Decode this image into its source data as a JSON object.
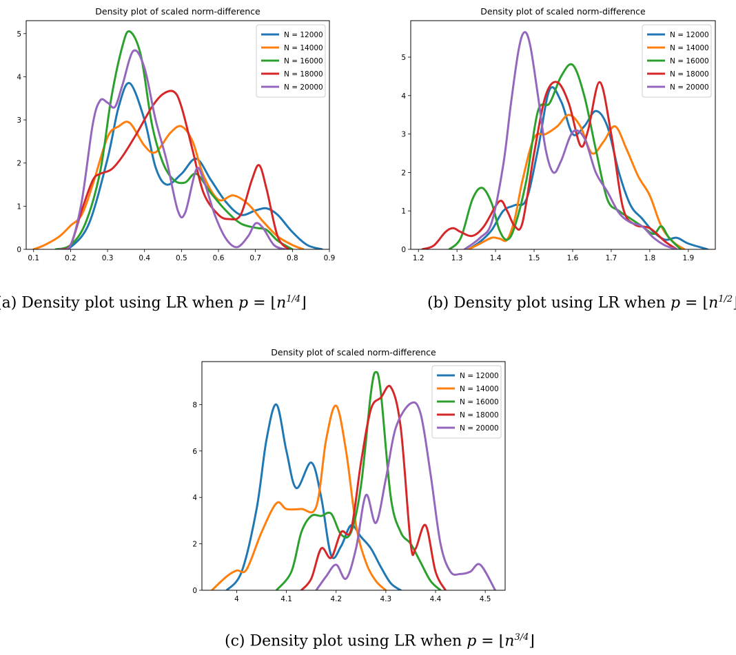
{
  "chart_data": [
    {
      "type": "line",
      "title": "Density plot of scaled norm-difference",
      "xlabel": "",
      "ylabel": "",
      "xlim": [
        0.08,
        0.9
      ],
      "ylim": [
        0,
        5.3
      ],
      "xticks": [
        0.1,
        0.2,
        0.3,
        0.4,
        0.5,
        0.6,
        0.7,
        0.8,
        0.9
      ],
      "yticks": [
        0,
        1,
        2,
        3,
        4,
        5
      ],
      "legend": "top-right",
      "grid": false,
      "series": [
        {
          "name": "N = 12000",
          "color": "#1f77b4",
          "x": [
            0.17,
            0.2,
            0.25,
            0.3,
            0.33,
            0.36,
            0.4,
            0.43,
            0.46,
            0.5,
            0.54,
            0.58,
            0.62,
            0.66,
            0.7,
            0.73,
            0.76,
            0.8,
            0.84,
            0.88
          ],
          "y": [
            0,
            0.05,
            0.6,
            2.1,
            3.3,
            3.85,
            3.0,
            1.9,
            1.5,
            1.75,
            2.1,
            1.6,
            1.1,
            0.8,
            0.9,
            0.95,
            0.8,
            0.4,
            0.1,
            0
          ]
        },
        {
          "name": "N = 14000",
          "color": "#ff7f0e",
          "x": [
            0.1,
            0.13,
            0.17,
            0.2,
            0.23,
            0.26,
            0.3,
            0.33,
            0.36,
            0.4,
            0.43,
            0.47,
            0.5,
            0.53,
            0.56,
            0.6,
            0.64,
            0.68,
            0.72,
            0.76,
            0.8,
            0.83
          ],
          "y": [
            0,
            0.1,
            0.3,
            0.55,
            0.8,
            1.5,
            2.6,
            2.85,
            2.93,
            2.4,
            2.25,
            2.7,
            2.85,
            2.5,
            1.7,
            1.15,
            1.25,
            1.05,
            0.65,
            0.3,
            0.1,
            0
          ]
        },
        {
          "name": "N = 16000",
          "color": "#2ca02c",
          "x": [
            0.16,
            0.2,
            0.24,
            0.28,
            0.31,
            0.34,
            0.36,
            0.39,
            0.42,
            0.45,
            0.48,
            0.51,
            0.54,
            0.58,
            0.62,
            0.66,
            0.7,
            0.73,
            0.76,
            0.8
          ],
          "y": [
            0,
            0.1,
            0.6,
            1.8,
            3.5,
            4.7,
            5.05,
            4.5,
            2.9,
            2.0,
            1.6,
            1.55,
            1.75,
            1.3,
            0.9,
            0.6,
            0.5,
            0.45,
            0.2,
            0
          ]
        },
        {
          "name": "N = 18000",
          "color": "#d62728",
          "x": [
            0.17,
            0.2,
            0.23,
            0.26,
            0.28,
            0.31,
            0.34,
            0.38,
            0.42,
            0.45,
            0.48,
            0.5,
            0.53,
            0.56,
            0.6,
            0.63,
            0.66,
            0.69,
            0.71,
            0.73,
            0.76,
            0.79
          ],
          "y": [
            0,
            0.1,
            0.9,
            1.6,
            1.75,
            1.85,
            2.15,
            2.7,
            3.3,
            3.6,
            3.65,
            3.3,
            2.3,
            1.3,
            0.8,
            0.7,
            0.8,
            1.6,
            1.95,
            1.4,
            0.3,
            0
          ]
        },
        {
          "name": "N = 20000",
          "color": "#9467bd",
          "x": [
            0.17,
            0.2,
            0.23,
            0.26,
            0.28,
            0.3,
            0.32,
            0.34,
            0.37,
            0.4,
            0.43,
            0.46,
            0.49,
            0.51,
            0.54,
            0.56,
            0.59,
            0.62,
            0.65,
            0.68,
            0.7,
            0.72,
            0.75,
            0.78
          ],
          "y": [
            0,
            0.1,
            1.1,
            2.9,
            3.45,
            3.4,
            3.3,
            3.8,
            4.6,
            4.2,
            3.0,
            2.05,
            0.9,
            0.85,
            1.85,
            1.6,
            0.8,
            0.25,
            0.05,
            0.3,
            0.6,
            0.5,
            0.1,
            0
          ]
        }
      ]
    },
    {
      "type": "line",
      "title": "Density plot of scaled norm-difference",
      "xlabel": "",
      "ylabel": "",
      "xlim": [
        1.18,
        1.97
      ],
      "ylim": [
        0,
        5.95
      ],
      "xticks": [
        1.2,
        1.3,
        1.4,
        1.5,
        1.6,
        1.7,
        1.8,
        1.9
      ],
      "yticks": [
        0,
        1,
        2,
        3,
        4,
        5
      ],
      "legend": "top-right",
      "grid": false,
      "series": [
        {
          "name": "N = 12000",
          "color": "#1f77b4",
          "x": [
            1.33,
            1.36,
            1.39,
            1.42,
            1.45,
            1.48,
            1.51,
            1.54,
            1.57,
            1.6,
            1.63,
            1.66,
            1.69,
            1.72,
            1.75,
            1.78,
            1.81,
            1.84,
            1.87,
            1.9,
            1.95
          ],
          "y": [
            0,
            0.2,
            0.5,
            1.0,
            1.15,
            1.3,
            2.6,
            4.15,
            3.85,
            3.0,
            3.2,
            3.6,
            3.2,
            2.0,
            1.15,
            0.8,
            0.45,
            0.25,
            0.3,
            0.15,
            0
          ]
        },
        {
          "name": "N = 14000",
          "color": "#ff7f0e",
          "x": [
            1.33,
            1.36,
            1.39,
            1.41,
            1.43,
            1.45,
            1.47,
            1.5,
            1.53,
            1.56,
            1.59,
            1.62,
            1.65,
            1.68,
            1.71,
            1.74,
            1.77,
            1.8,
            1.83,
            1.86,
            1.89
          ],
          "y": [
            0,
            0.15,
            0.3,
            0.28,
            0.25,
            0.8,
            1.8,
            2.9,
            3.0,
            3.2,
            3.5,
            3.2,
            2.5,
            2.8,
            3.2,
            2.6,
            1.9,
            1.4,
            0.6,
            0.2,
            0
          ]
        },
        {
          "name": "N = 16000",
          "color": "#2ca02c",
          "x": [
            1.28,
            1.31,
            1.34,
            1.365,
            1.39,
            1.41,
            1.43,
            1.45,
            1.48,
            1.51,
            1.54,
            1.57,
            1.6,
            1.63,
            1.66,
            1.69,
            1.72,
            1.75,
            1.78,
            1.81,
            1.83,
            1.85,
            1.88
          ],
          "y": [
            0,
            0.3,
            1.3,
            1.6,
            1.2,
            0.5,
            0.25,
            0.6,
            1.8,
            3.6,
            3.8,
            4.5,
            4.8,
            4.0,
            2.6,
            1.3,
            1.0,
            0.8,
            0.6,
            0.4,
            0.6,
            0.3,
            0
          ]
        },
        {
          "name": "N = 18000",
          "color": "#d62728",
          "x": [
            1.21,
            1.24,
            1.27,
            1.29,
            1.31,
            1.34,
            1.37,
            1.41,
            1.43,
            1.45,
            1.47,
            1.5,
            1.53,
            1.56,
            1.59,
            1.62,
            1.64,
            1.67,
            1.7,
            1.73,
            1.76,
            1.8,
            1.84,
            1.87
          ],
          "y": [
            0,
            0.1,
            0.45,
            0.55,
            0.45,
            0.35,
            0.6,
            1.25,
            1.0,
            0.6,
            0.7,
            2.5,
            4.0,
            4.35,
            3.8,
            2.7,
            3.1,
            4.35,
            3.0,
            1.1,
            0.65,
            0.55,
            0.2,
            0
          ]
        },
        {
          "name": "N = 20000",
          "color": "#9467bd",
          "x": [
            1.32,
            1.36,
            1.39,
            1.42,
            1.44,
            1.46,
            1.475,
            1.49,
            1.51,
            1.53,
            1.55,
            1.57,
            1.6,
            1.63,
            1.66,
            1.69,
            1.72,
            1.75,
            1.78,
            1.81,
            1.84,
            1.87
          ],
          "y": [
            0,
            0.3,
            0.7,
            2.2,
            3.8,
            5.2,
            5.65,
            5.3,
            4.0,
            2.6,
            2.0,
            2.3,
            3.05,
            2.9,
            2.0,
            1.5,
            0.95,
            0.7,
            0.6,
            0.3,
            0.1,
            0
          ]
        }
      ]
    },
    {
      "type": "line",
      "title": "Density plot of scaled norm-difference",
      "xlabel": "",
      "ylabel": "",
      "xlim": [
        3.93,
        4.54
      ],
      "ylim": [
        0,
        9.85
      ],
      "xticks": [
        4.0,
        4.1,
        4.2,
        4.3,
        4.4,
        4.5
      ],
      "yticks": [
        0,
        2,
        4,
        6,
        8
      ],
      "legend": "top-right",
      "grid": false,
      "series": [
        {
          "name": "N = 12000",
          "color": "#1f77b4",
          "x": [
            3.98,
            4.01,
            4.04,
            4.06,
            4.08,
            4.1,
            4.12,
            4.15,
            4.17,
            4.19,
            4.21,
            4.23,
            4.25,
            4.27,
            4.29,
            4.31,
            4.33
          ],
          "y": [
            0,
            0.8,
            3.5,
            6.5,
            8.0,
            6.0,
            4.4,
            5.5,
            4.0,
            1.5,
            1.9,
            2.8,
            2.3,
            1.8,
            1.0,
            0.3,
            0
          ]
        },
        {
          "name": "N = 14000",
          "color": "#ff7f0e",
          "x": [
            3.95,
            3.98,
            4.0,
            4.02,
            4.05,
            4.08,
            4.1,
            4.13,
            4.16,
            4.18,
            4.2,
            4.22,
            4.24,
            4.26,
            4.28,
            4.3
          ],
          "y": [
            0,
            0.6,
            0.85,
            0.9,
            2.5,
            3.75,
            3.5,
            3.5,
            3.6,
            6.5,
            7.95,
            6.0,
            2.8,
            1.2,
            0.4,
            0
          ]
        },
        {
          "name": "N = 16000",
          "color": "#2ca02c",
          "x": [
            4.08,
            4.11,
            4.13,
            4.15,
            4.17,
            4.19,
            4.21,
            4.23,
            4.25,
            4.27,
            4.28,
            4.29,
            4.31,
            4.33,
            4.35,
            4.37,
            4.39,
            4.41
          ],
          "y": [
            0,
            0.8,
            2.5,
            3.2,
            3.2,
            3.3,
            2.4,
            2.5,
            4.5,
            8.5,
            9.4,
            8.5,
            4.0,
            2.5,
            2.0,
            1.2,
            0.4,
            0
          ]
        },
        {
          "name": "N = 18000",
          "color": "#d62728",
          "x": [
            4.13,
            4.15,
            4.17,
            4.19,
            4.21,
            4.23,
            4.25,
            4.27,
            4.29,
            4.31,
            4.33,
            4.35,
            4.36,
            4.38,
            4.4,
            4.42
          ],
          "y": [
            0,
            0.5,
            1.8,
            1.4,
            2.5,
            2.6,
            5.5,
            7.8,
            8.3,
            8.75,
            7.0,
            2.0,
            1.8,
            2.8,
            0.8,
            0
          ]
        },
        {
          "name": "N = 20000",
          "color": "#9467bd",
          "x": [
            4.16,
            4.18,
            4.2,
            4.22,
            4.24,
            4.26,
            4.28,
            4.3,
            4.32,
            4.35,
            4.37,
            4.39,
            4.41,
            4.43,
            4.45,
            4.47,
            4.49,
            4.52
          ],
          "y": [
            0,
            0.6,
            1.1,
            0.5,
            1.8,
            4.1,
            2.9,
            4.8,
            7.0,
            8.05,
            7.6,
            5.0,
            2.0,
            0.8,
            0.7,
            0.8,
            1.1,
            0
          ]
        }
      ]
    }
  ],
  "captions": [
    {
      "prefix": "(a) Density plot using LR when ",
      "var": "p",
      "mid": " = ⌊",
      "base": "n",
      "exp": "1/4",
      "suffix": "⌋"
    },
    {
      "prefix": "(b) Density plot using LR when ",
      "var": "p",
      "mid": " = ⌊",
      "base": "n",
      "exp": "1/2",
      "suffix": "⌋"
    },
    {
      "prefix": "(c) Density plot using LR when ",
      "var": "p",
      "mid": " = ⌊",
      "base": "n",
      "exp": "3/4",
      "suffix": "⌋"
    }
  ]
}
